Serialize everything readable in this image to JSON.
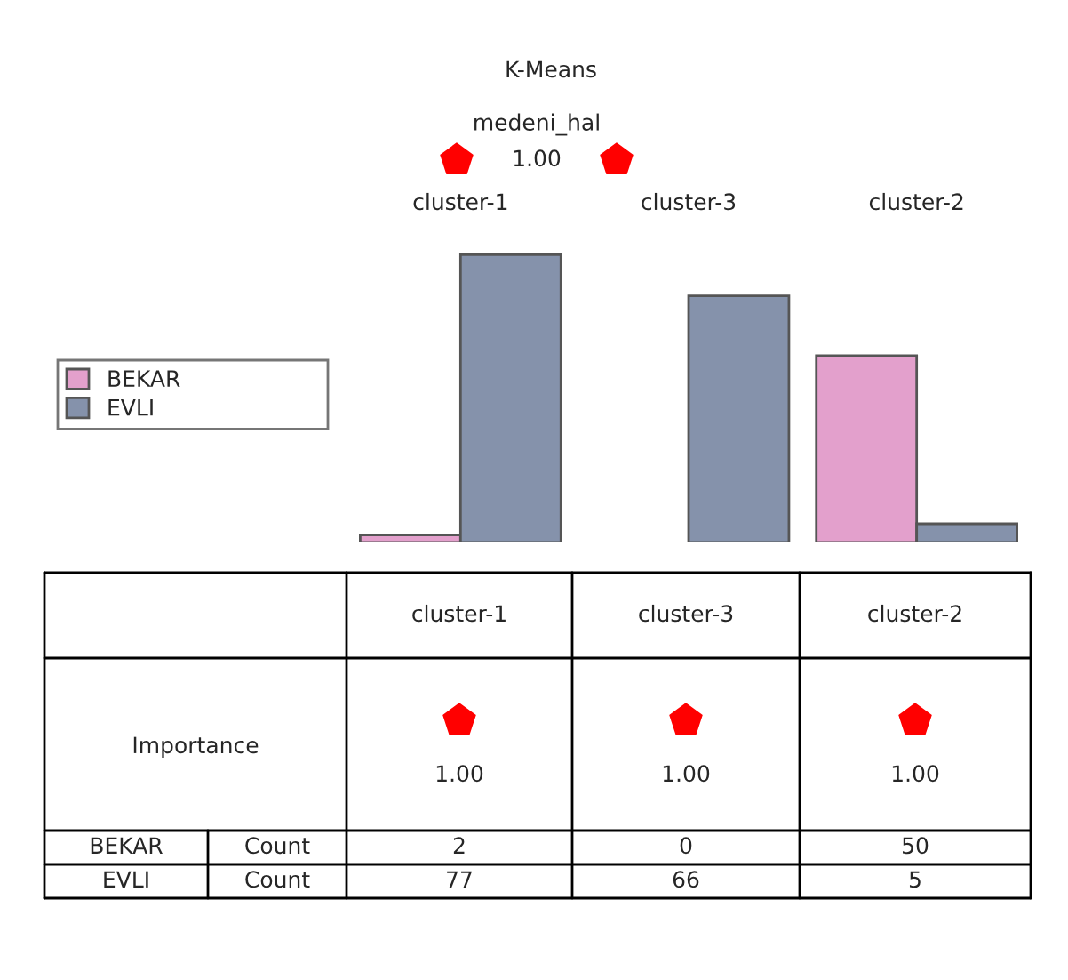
{
  "chart_data": {
    "type": "bar",
    "title": "K-Means",
    "subtitle": "medeni_hal",
    "categories": [
      "cluster-1",
      "cluster-3",
      "cluster-2"
    ],
    "series": [
      {
        "name": "BEKAR",
        "color": "#e3a0cc",
        "values": [
          2,
          0,
          50
        ]
      },
      {
        "name": "EVLI",
        "color": "#8592ab",
        "values": [
          77,
          66,
          5
        ]
      }
    ],
    "data_labels": true,
    "legend": "left",
    "grid": false,
    "tick_labels": "x",
    "annotations": [
      "1.00",
      "Importance",
      "1.00",
      "1.00",
      "1.00",
      "Count"
    ]
  }
}
